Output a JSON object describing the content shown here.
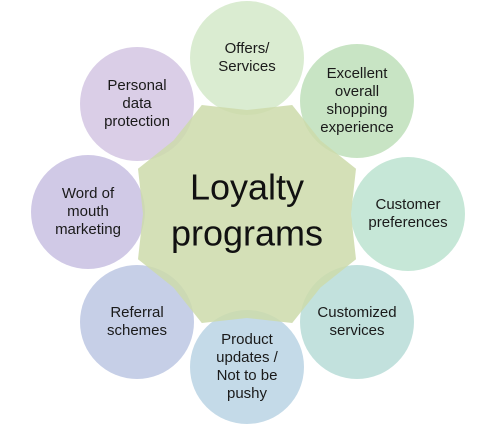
{
  "center": {
    "line1": "Loyalty",
    "line2": "programs",
    "color": "#cddbaa"
  },
  "satellites": [
    {
      "lines": [
        "Offers/",
        "Services"
      ],
      "color": "#c3e0b4"
    },
    {
      "lines": [
        "Excellent",
        "overall",
        "shopping",
        "experience"
      ],
      "color": "#a6d4a0"
    },
    {
      "lines": [
        "Customer",
        "preferences"
      ],
      "color": "#a3d8be"
    },
    {
      "lines": [
        "Customized",
        "services"
      ],
      "color": "#9ccfc8"
    },
    {
      "lines": [
        "Product",
        "updates /",
        "Not to be",
        "pushy"
      ],
      "color": "#a0c4da"
    },
    {
      "lines": [
        "Referral",
        "schemes"
      ],
      "color": "#a3b2d8"
    },
    {
      "lines": [
        "Word of",
        "mouth",
        "marketing"
      ],
      "color": "#b3a8d6"
    },
    {
      "lines": [
        "Personal",
        "data",
        "protection"
      ],
      "color": "#c4b0d8"
    }
  ]
}
